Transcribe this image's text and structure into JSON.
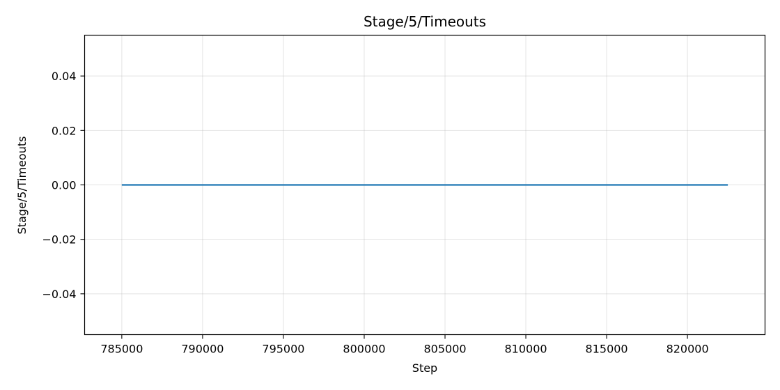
{
  "chart_data": {
    "type": "line",
    "title": "Stage/5/Timeouts",
    "xlabel": "Step",
    "ylabel": "Stage/5/Timeouts",
    "xlim": [
      782700,
      824800
    ],
    "ylim": [
      -0.055,
      0.055
    ],
    "x_ticks": [
      785000,
      790000,
      795000,
      800000,
      805000,
      810000,
      815000,
      820000
    ],
    "x_tick_labels": [
      "785000",
      "790000",
      "795000",
      "800000",
      "805000",
      "810000",
      "815000",
      "820000"
    ],
    "y_ticks": [
      0.04,
      0.02,
      0.0,
      -0.02,
      -0.04
    ],
    "y_tick_labels": [
      "0.04",
      "0.02",
      "0.00",
      "−0.02",
      "−0.04"
    ],
    "grid": true,
    "series": [
      {
        "color": "#1f77b4",
        "x": [
          785000,
          822500
        ],
        "y": [
          0,
          0
        ]
      }
    ]
  }
}
